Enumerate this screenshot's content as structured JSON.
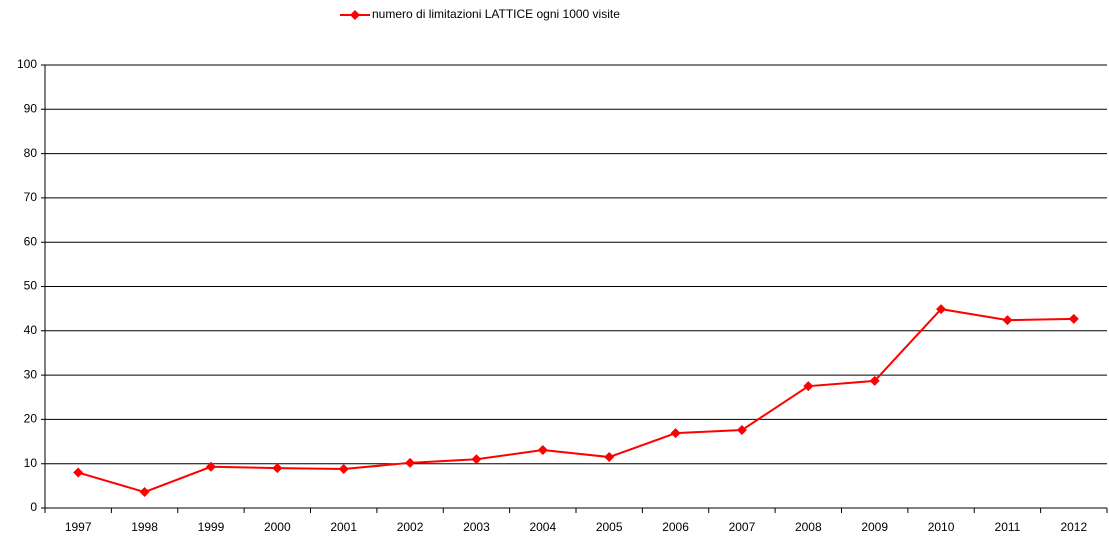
{
  "chart_data": {
    "type": "line",
    "categories": [
      "1997",
      "1998",
      "1999",
      "2000",
      "2001",
      "2002",
      "2003",
      "2004",
      "2005",
      "2006",
      "2007",
      "2008",
      "2009",
      "2010",
      "2011",
      "2012"
    ],
    "series": [
      {
        "name": "numero di limitazioni LATTICE ogni 1000 visite",
        "color": "#ff0000",
        "values": [
          8,
          3.6,
          9.3,
          9.0,
          8.8,
          10.2,
          11.0,
          13.1,
          11.5,
          16.9,
          17.6,
          27.5,
          28.7,
          44.9,
          42.4,
          42.7
        ]
      }
    ],
    "ylim": [
      0,
      100
    ],
    "yticks": [
      0,
      10,
      20,
      30,
      40,
      50,
      60,
      70,
      80,
      90,
      100
    ],
    "grid": true,
    "legend": "top"
  }
}
